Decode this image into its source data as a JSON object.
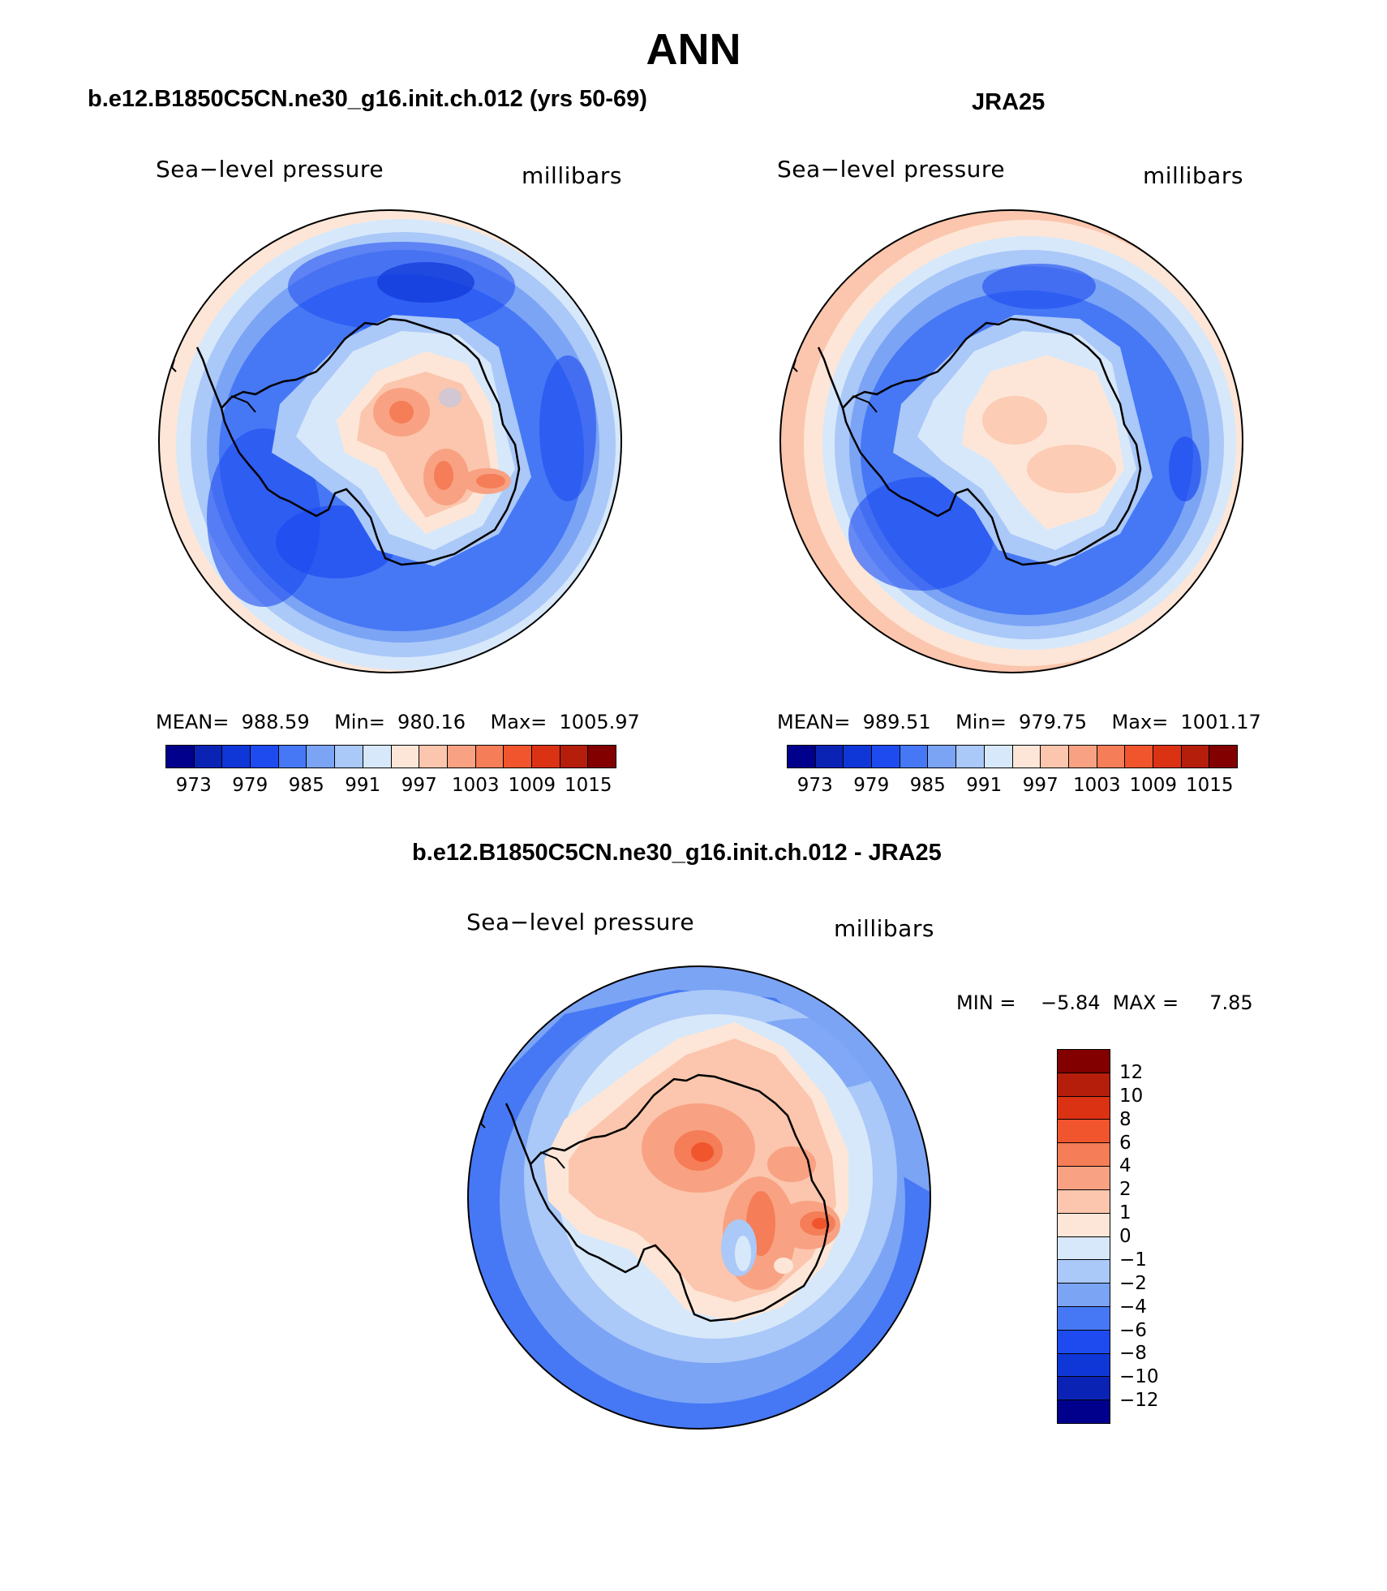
{
  "title": "ANN",
  "panels": [
    {
      "heading": "b.e12.B1850C5CN.ne30_g16.init.ch.012 (yrs 50-69)",
      "left_label": "Sea−level pressure",
      "right_label": "millibars",
      "stats": "MEAN=  988.59    Min=  980.16    Max=  1005.97",
      "mean": 988.59,
      "min": 980.16,
      "max": 1005.97
    },
    {
      "heading": "JRA25",
      "left_label": "Sea−level pressure",
      "right_label": "millibars",
      "stats": "MEAN=  989.51    Min=  979.75    Max=  1001.17",
      "mean": 989.51,
      "min": 979.75,
      "max": 1001.17
    }
  ],
  "diff_panel": {
    "heading": "b.e12.B1850C5CN.ne30_g16.init.ch.012 - JRA25",
    "left_label": "Sea−level pressure",
    "right_label": "millibars",
    "stats": "MIN =    −5.84  MAX =     7.85",
    "min": -5.84,
    "max": 7.85
  },
  "colorbar_abs": {
    "colors": [
      "#00008c",
      "#0a23b4",
      "#0f37d7",
      "#1e4bf0",
      "#4678f5",
      "#7ba4f5",
      "#aac8f8",
      "#d7e8fa",
      "#fde6d7",
      "#fbc6ad",
      "#f8a283",
      "#f57d57",
      "#f0552d",
      "#dc3214",
      "#b41e0a",
      "#820000"
    ],
    "ticks": [
      "973",
      "979",
      "985",
      "991",
      "997",
      "1003",
      "1009",
      "1015"
    ]
  },
  "colorbar_diff": {
    "colors": [
      "#820000",
      "#b41e0a",
      "#dc3214",
      "#f0552d",
      "#f57d57",
      "#f8a283",
      "#fbc6ad",
      "#fde6d7",
      "#d7e8fa",
      "#aac8f8",
      "#7ba4f5",
      "#4678f5",
      "#1e4bf0",
      "#0f37d7",
      "#0a23b4",
      "#00008c"
    ],
    "ticks": [
      "12",
      "10",
      "8",
      "6",
      "4",
      "2",
      "1",
      "0",
      "−1",
      "−2",
      "−4",
      "−6",
      "−8",
      "−10",
      "−12"
    ]
  }
}
